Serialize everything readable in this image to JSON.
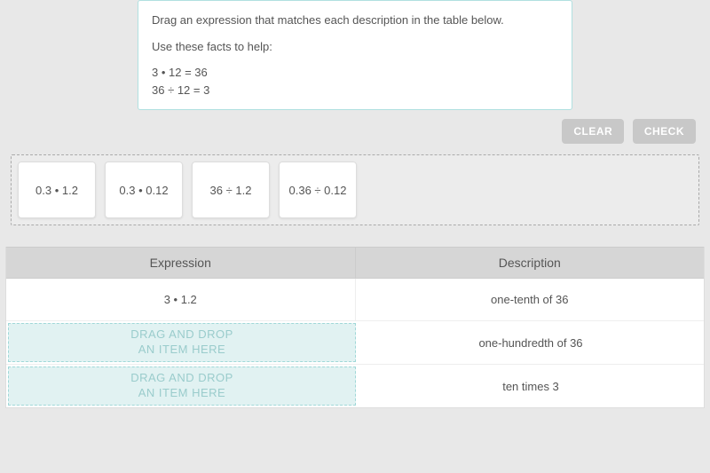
{
  "instructions": {
    "line1": "Drag an expression that matches each description in the table below.",
    "line2": "Use these facts to help:",
    "fact1": "3 • 12 = 36",
    "fact2": "36 ÷ 12 = 3"
  },
  "buttons": {
    "clear": "CLEAR",
    "check": "CHECK"
  },
  "drag_pool": {
    "tiles": [
      {
        "label": "0.3 • 1.2"
      },
      {
        "label": "0.3 • 0.12"
      },
      {
        "label": "36 ÷ 1.2"
      },
      {
        "label": "0.36 ÷ 0.12"
      }
    ]
  },
  "table": {
    "headers": {
      "expression": "Expression",
      "description": "Description"
    },
    "rows": [
      {
        "expression": "3 • 1.2",
        "description": "one-tenth of 36",
        "dropzone": false
      },
      {
        "expression": "",
        "description": "one-hundredth of 36",
        "dropzone": true
      },
      {
        "expression": "",
        "description": "ten times 3",
        "dropzone": true
      }
    ],
    "drop_placeholder": {
      "line1": "DRAG AND DROP",
      "line2": "AN ITEM HERE"
    }
  },
  "colors": {
    "page_bg": "#e8e8e8",
    "instruction_border": "#b0e0e0",
    "button_bg": "#c8c8c8",
    "dropzone_bg": "#e1f2f2",
    "dropzone_text": "#9acccc",
    "header_bg": "#d6d6d6",
    "text": "#555555"
  }
}
